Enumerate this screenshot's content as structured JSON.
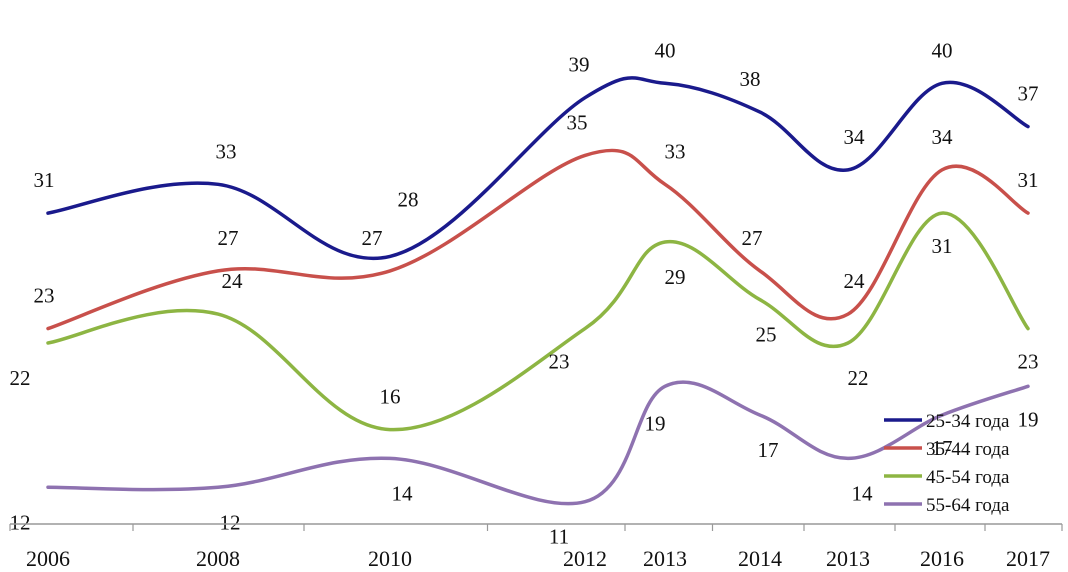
{
  "chart_data": {
    "type": "line",
    "title": "",
    "xlabel": "",
    "ylabel": "",
    "categories": [
      "2006",
      "2008",
      "2010",
      "2012",
      "2013",
      "2014",
      "2013",
      "2016",
      "2017"
    ],
    "ylim": [
      8,
      43
    ],
    "grid": false,
    "legend_position": "bottom-right",
    "series": [
      {
        "name": "25-34 года",
        "color": "#1a1a8c",
        "values": [
          31,
          33,
          28,
          39,
          40,
          38,
          34,
          40,
          37
        ]
      },
      {
        "name": "35-44 года",
        "color": "#c8504b",
        "values": [
          23,
          27,
          27,
          35,
          33,
          27,
          24,
          34,
          31
        ]
      },
      {
        "name": "45-54 года",
        "color": "#8db543",
        "values": [
          22,
          24,
          16,
          23,
          29,
          25,
          22,
          31,
          23
        ]
      },
      {
        "name": "55-64 года",
        "color": "#8e72b0",
        "values": [
          12,
          12,
          14,
          11,
          19,
          17,
          14,
          17,
          19
        ]
      }
    ]
  }
}
